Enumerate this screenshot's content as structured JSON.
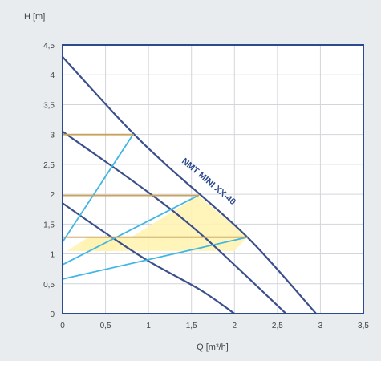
{
  "chart_data": {
    "type": "line",
    "title": "",
    "xlabel": "Q [m³/h]",
    "ylabel": "H [m]",
    "xlim": [
      0,
      3.5
    ],
    "ylim": [
      0,
      4.5
    ],
    "x_ticks": [
      "0",
      "0,5",
      "1",
      "1,5",
      "2",
      "2,5",
      "3",
      "3,5"
    ],
    "y_ticks": [
      "0",
      "0,5",
      "1",
      "1,5",
      "2",
      "2,5",
      "3",
      "3,5",
      "4",
      "4,5"
    ],
    "grid": true,
    "annotation": "NMT MINI XX-40",
    "series": [
      {
        "kind": "pump-curve",
        "points": [
          [
            0,
            4.3
          ],
          [
            0.7,
            3.2
          ],
          [
            1.2,
            2.5
          ],
          [
            2.15,
            1.28
          ],
          [
            2.95,
            0
          ]
        ]
      },
      {
        "kind": "pump-curve",
        "points": [
          [
            0,
            3.05
          ],
          [
            1.0,
            2.03
          ],
          [
            1.65,
            1.28
          ],
          [
            2.6,
            0
          ]
        ]
      },
      {
        "kind": "pump-curve",
        "points": [
          [
            0,
            1.85
          ],
          [
            0.5,
            1.35
          ],
          [
            1.0,
            0.88
          ],
          [
            1.6,
            0.4
          ],
          [
            2.0,
            0
          ]
        ]
      },
      {
        "kind": "system-curve",
        "points": [
          [
            0,
            1.2
          ],
          [
            0.82,
            3.0
          ]
        ]
      },
      {
        "kind": "system-curve",
        "points": [
          [
            0,
            0.82
          ],
          [
            1.58,
            1.98
          ]
        ]
      },
      {
        "kind": "system-curve",
        "points": [
          [
            0,
            0.58
          ],
          [
            2.15,
            1.28
          ]
        ]
      },
      {
        "kind": "level-line",
        "points": [
          [
            0,
            3.0
          ],
          [
            0.82,
            3.0
          ]
        ]
      },
      {
        "kind": "level-line",
        "points": [
          [
            0,
            1.98
          ],
          [
            1.58,
            1.98
          ]
        ]
      },
      {
        "kind": "level-line",
        "points": [
          [
            0,
            1.28
          ],
          [
            2.15,
            1.28
          ]
        ]
      }
    ],
    "highlight_region": [
      [
        0.3,
        1.28
      ],
      [
        2.15,
        1.28
      ],
      [
        1.58,
        1.98
      ],
      [
        0.8,
        1.28
      ],
      [
        0.2,
        1.05
      ],
      [
        2.0,
        1.05
      ]
    ],
    "colors": {
      "background": "#e9ecee",
      "plot_border": "#2e4a8e",
      "grid": "#d2d6da",
      "pump_curve": "#3a4f8c",
      "system_curve": "#3fb6e6",
      "level_line": "#c9a25c",
      "fill": "#fff3b3",
      "text": "#444444",
      "annotation": "#2e4a8e"
    }
  }
}
